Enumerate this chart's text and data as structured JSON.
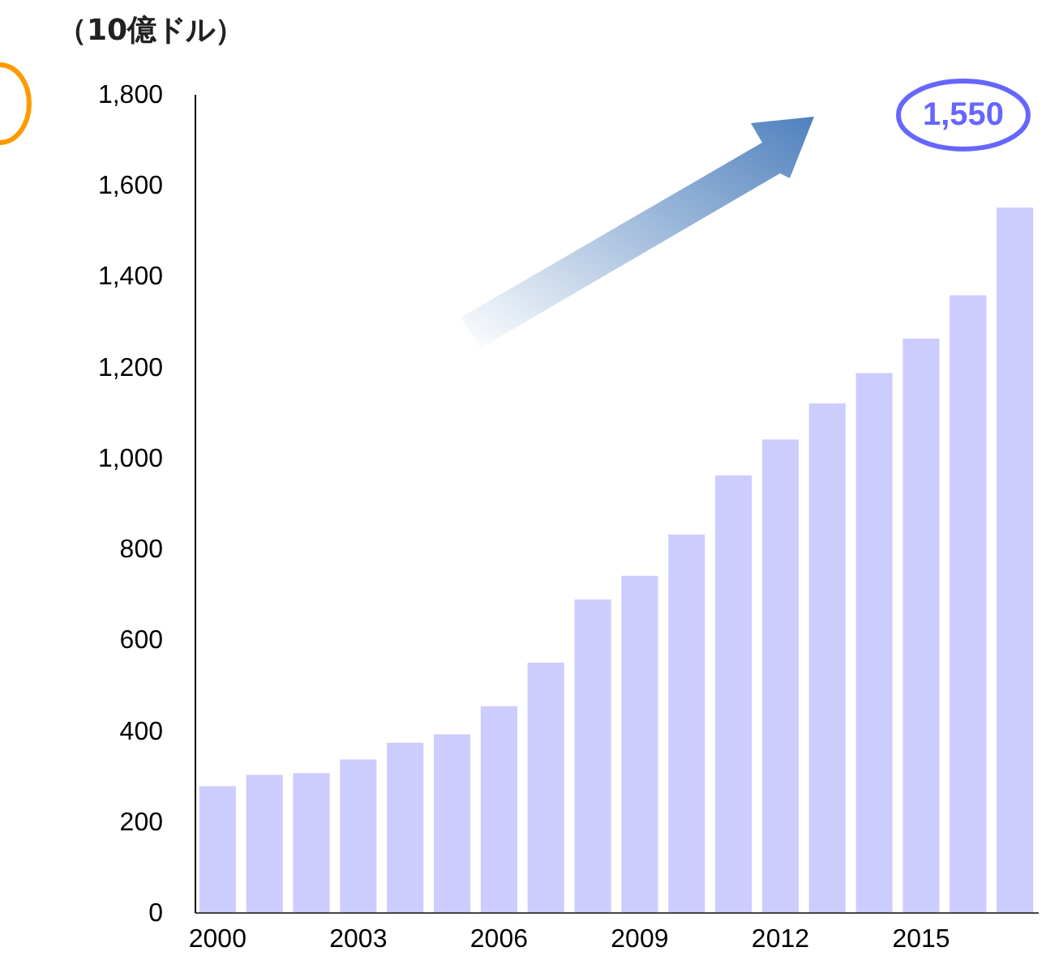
{
  "chart_data": {
    "type": "bar",
    "ylabel": "（10億ドル）",
    "categories": [
      "2000",
      null,
      null,
      "2003",
      null,
      null,
      "2006",
      null,
      null,
      "2009",
      null,
      null,
      "2012",
      null,
      null,
      "2015",
      null,
      null
    ],
    "values": [
      277,
      302,
      306,
      336,
      373,
      391,
      453,
      549,
      688,
      740,
      831,
      961,
      1040,
      1119,
      1186,
      1262,
      1357,
      1550
    ],
    "color": "#ccccff",
    "ylim": [
      0,
      1800
    ],
    "yticks": [
      0,
      200,
      400,
      600,
      800,
      {
        "value": 1000,
        "label": "1,000"
      },
      {
        "value": 1200,
        "label": "1,200"
      },
      {
        "value": 1400,
        "label": "1,400"
      },
      {
        "value": 1600,
        "label": "1,600"
      },
      {
        "value": 1800,
        "label": "1,800"
      }
    ],
    "annotations": [
      "1,550"
    ]
  }
}
